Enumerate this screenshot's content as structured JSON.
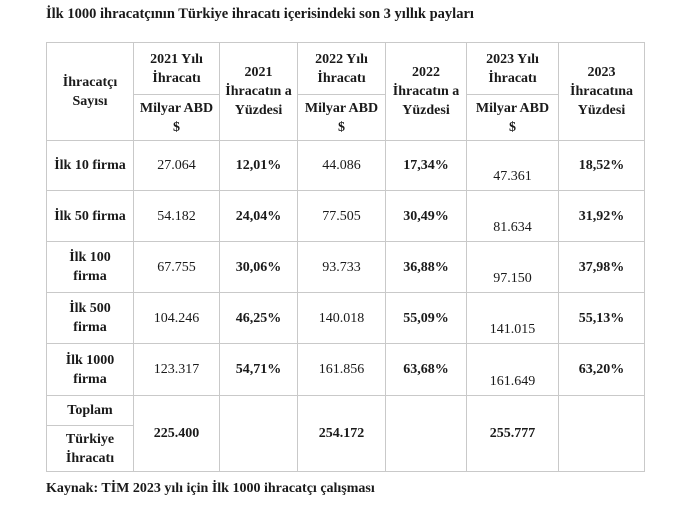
{
  "title": "İlk 1000 ihracatçının Türkiye ihracatı içerisindeki son 3 yıllık payları",
  "headers": {
    "ihracatci_sayisi": "İhracatçı Sayısı",
    "y2021_export": "2021 Yılı İhracatı",
    "y2021_share": "2021 İhracatın a Yüzdesi",
    "y2022_export": "2022 Yılı İhracatı",
    "y2022_share": "2022 İhracatın a Yüzdesi",
    "y2023_export": "2023 Yılı İhracatı",
    "y2023_share": "2023 İhracatına Yüzdesi",
    "unit_2021": "Milyar ABD $",
    "unit_2022": "Milyar ABD $",
    "unit_2023": "Milyar ABD $"
  },
  "rows": [
    {
      "label": "İlk 10 firma",
      "v2021": "27.064",
      "p2021": "12,01%",
      "v2022": "44.086",
      "p2022": "17,34%",
      "v2023": "47.361",
      "p2023": "18,52%"
    },
    {
      "label": "İlk 50 firma",
      "v2021": "54.182",
      "p2021": "24,04%",
      "v2022": "77.505",
      "p2022": "30,49%",
      "v2023": "81.634",
      "p2023": "31,92%"
    },
    {
      "label": "İlk 100 firma",
      "v2021": "67.755",
      "p2021": "30,06%",
      "v2022": "93.733",
      "p2022": "36,88%",
      "v2023": "97.150",
      "p2023": "37,98%"
    },
    {
      "label": "İlk 500 firma",
      "v2021": "104.246",
      "p2021": "46,25%",
      "v2022": "140.018",
      "p2022": "55,09%",
      "v2023": "141.015",
      "p2023": "55,13%"
    },
    {
      "label": "İlk 1000 firma",
      "v2021": "123.317",
      "p2021": "54,71%",
      "v2022": "161.856",
      "p2022": "63,68%",
      "v2023": "161.649",
      "p2023": "63,20%"
    }
  ],
  "total": {
    "toplam_label": "Toplam",
    "turkiye_label": "Türkiye İhracatı",
    "v2021": "225.400",
    "v2022": "254.172",
    "v2023": "255.777"
  },
  "footer": "Kaynak: TİM 2023 yılı için İlk 1000 ihracatçı çalışması"
}
